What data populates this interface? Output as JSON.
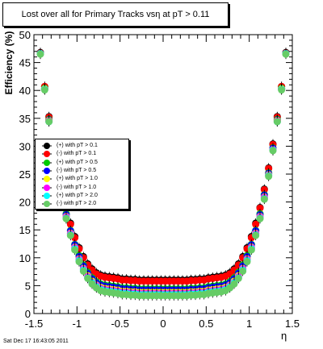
{
  "title": "Lost over all for Primary Tracks vsη at pT > 0.11",
  "footer": "Sat Dec 17 16:43:05 2011",
  "chart_data": {
    "type": "scatter",
    "xlabel": "η",
    "ylabel": "Efficiency (%)",
    "xlim": [
      -1.5,
      1.5
    ],
    "ylim": [
      0,
      50
    ],
    "x_ticks": [
      "-1.5",
      "-1",
      "-0.5",
      "0",
      "0.5",
      "1",
      "1.5"
    ],
    "y_ticks": [
      "0",
      "5",
      "10",
      "15",
      "20",
      "25",
      "30",
      "35",
      "40",
      "45",
      "50"
    ],
    "legend_placement": "middle-left",
    "series": [
      {
        "name": "(+) with pT > 0.1",
        "color": "#000000",
        "floor": 6.0
      },
      {
        "name": "(-) with pT > 0.1",
        "color": "#ff0000",
        "floor": 5.8
      },
      {
        "name": "(+) with pT > 0.5",
        "color": "#00cc00",
        "floor": 4.4
      },
      {
        "name": "(-) with pT > 0.5",
        "color": "#0000ff",
        "floor": 4.2
      },
      {
        "name": "(+) with pT > 1.0",
        "color": "#ffff00",
        "floor": 3.8
      },
      {
        "name": "(-) with pT > 1.0",
        "color": "#ff00ff",
        "floor": 3.6
      },
      {
        "name": "(+) with pT > 2.0",
        "color": "#00ffff",
        "floor": 3.4
      },
      {
        "name": "(-) with pT > 2.0",
        "color": "#66cc66",
        "floor": 3.2
      }
    ]
  }
}
